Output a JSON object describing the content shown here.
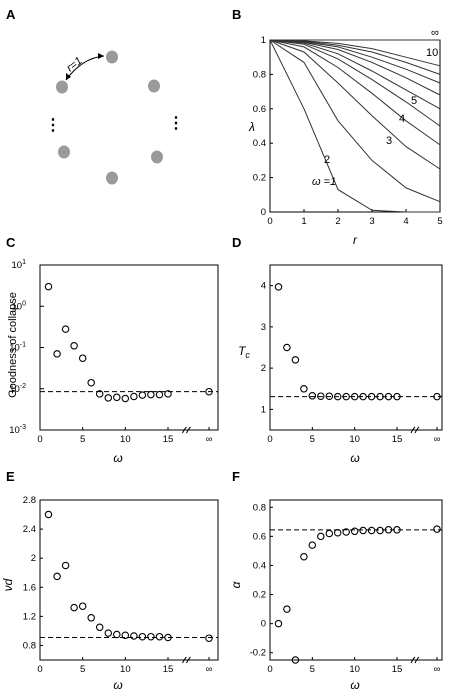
{
  "panels": {
    "A": {
      "letter": "A",
      "bond_label": "r=1",
      "dots_left": "⋮",
      "dots_right": "⋮"
    },
    "B": {
      "letter": "B",
      "xlabel": "r",
      "ylabel": "λ",
      "x_ticks": [
        "0",
        "1",
        "2",
        "3",
        "4",
        "5"
      ],
      "y_ticks": [
        "0",
        "0.2",
        "0.4",
        "0.6",
        "0.8",
        "1"
      ]
    },
    "C": {
      "letter": "C",
      "xlabel": "ω",
      "ylabel": "Goodness of collapse",
      "x_ticks": [
        "0",
        "5",
        "10",
        "15",
        "∞"
      ]
    },
    "D": {
      "letter": "D",
      "xlabel": "ω",
      "ylabel": "T",
      "ylabel_sub": "c",
      "x_ticks": [
        "0",
        "5",
        "10",
        "15",
        "∞"
      ],
      "y_ticks": [
        "1",
        "2",
        "3",
        "4"
      ]
    },
    "E": {
      "letter": "E",
      "xlabel": "ω",
      "ylabel": "νd",
      "x_ticks": [
        "0",
        "5",
        "10",
        "15",
        "∞"
      ],
      "y_ticks": [
        "0.8",
        "1.2",
        "1.6",
        "2",
        "2.4",
        "2.8"
      ]
    },
    "F": {
      "letter": "F",
      "xlabel": "ω",
      "ylabel": "α",
      "x_ticks": [
        "0",
        "5",
        "10",
        "15",
        "∞"
      ],
      "y_ticks": [
        "-0.2",
        "0",
        "0.2",
        "0.4",
        "0.6",
        "0.8"
      ]
    }
  },
  "chart_data": [
    {
      "panel": "B",
      "type": "line",
      "xlabel": "r",
      "ylabel": "λ",
      "xlim": [
        0,
        5
      ],
      "ylim": [
        0,
        1
      ],
      "x": [
        0,
        1,
        2,
        3,
        4,
        5
      ],
      "series": [
        {
          "name": "ω =1",
          "values": [
            1,
            0.6,
            0.13,
            0.01,
            0,
            0
          ]
        },
        {
          "name": "2",
          "values": [
            1,
            0.87,
            0.53,
            0.3,
            0.14,
            0.06
          ]
        },
        {
          "name": "3",
          "values": [
            1,
            0.93,
            0.75,
            0.56,
            0.38,
            0.25
          ]
        },
        {
          "name": "4",
          "values": [
            1,
            0.96,
            0.84,
            0.69,
            0.53,
            0.39
          ]
        },
        {
          "name": "5",
          "values": [
            1,
            0.975,
            0.89,
            0.77,
            0.64,
            0.5
          ]
        },
        {
          "name": "",
          "values": [
            1,
            0.982,
            0.92,
            0.82,
            0.71,
            0.6
          ]
        },
        {
          "name": "",
          "values": [
            1,
            0.987,
            0.945,
            0.87,
            0.78,
            0.68
          ]
        },
        {
          "name": "",
          "values": [
            1,
            0.99,
            0.96,
            0.9,
            0.83,
            0.75
          ]
        },
        {
          "name": "",
          "values": [
            1,
            0.993,
            0.97,
            0.93,
            0.87,
            0.8
          ]
        },
        {
          "name": "10",
          "values": [
            1,
            0.995,
            0.98,
            0.95,
            0.9,
            0.85
          ]
        },
        {
          "name": "∞",
          "values": [
            1,
            1,
            1,
            1,
            1,
            1
          ]
        }
      ]
    },
    {
      "panel": "C",
      "type": "scatter",
      "xlabel": "ω",
      "ylabel": "Goodness of collapse",
      "yscale": "log",
      "ylim": [
        0.001,
        10
      ],
      "xlim": [
        0,
        15
      ],
      "x": [
        1,
        2,
        3,
        4,
        5,
        6,
        7,
        8,
        9,
        10,
        11,
        12,
        13,
        14,
        15,
        "∞"
      ],
      "values": [
        3,
        0.07,
        0.28,
        0.11,
        0.055,
        0.014,
        0.0075,
        0.006,
        0.0062,
        0.0058,
        0.0065,
        0.007,
        0.0072,
        0.0072,
        0.0075,
        0.0085
      ],
      "reference_line": 0.0085
    },
    {
      "panel": "D",
      "type": "scatter",
      "xlabel": "ω",
      "ylabel": "Tc",
      "ylim": [
        0.5,
        4.5
      ],
      "xlim": [
        0,
        15
      ],
      "x": [
        1,
        2,
        3,
        4,
        5,
        6,
        7,
        8,
        9,
        10,
        11,
        12,
        13,
        14,
        15,
        "∞"
      ],
      "values": [
        3.97,
        2.5,
        2.2,
        1.5,
        1.33,
        1.32,
        1.32,
        1.31,
        1.31,
        1.31,
        1.31,
        1.31,
        1.31,
        1.31,
        1.31,
        1.31
      ],
      "reference_line": 1.31
    },
    {
      "panel": "E",
      "type": "scatter",
      "xlabel": "ω",
      "ylabel": "νd",
      "ylim": [
        0.6,
        2.8
      ],
      "xlim": [
        0,
        15
      ],
      "x": [
        1,
        2,
        3,
        4,
        5,
        6,
        7,
        8,
        9,
        10,
        11,
        12,
        13,
        14,
        15,
        "∞"
      ],
      "values": [
        2.6,
        1.75,
        1.9,
        1.32,
        1.34,
        1.18,
        1.05,
        0.97,
        0.95,
        0.94,
        0.93,
        0.92,
        0.92,
        0.92,
        0.91,
        0.9
      ],
      "reference_line": 0.91
    },
    {
      "panel": "F",
      "type": "scatter",
      "xlabel": "ω",
      "ylabel": "α",
      "ylim": [
        -0.25,
        0.85
      ],
      "xlim": [
        0,
        15
      ],
      "x": [
        1,
        2,
        3,
        4,
        5,
        6,
        7,
        8,
        9,
        10,
        11,
        12,
        13,
        14,
        15,
        "∞"
      ],
      "values": [
        0,
        0.1,
        -0.25,
        0.46,
        0.54,
        0.6,
        0.62,
        0.625,
        0.63,
        0.635,
        0.64,
        0.64,
        0.64,
        0.645,
        0.645,
        0.65
      ],
      "reference_line": 0.645
    }
  ]
}
